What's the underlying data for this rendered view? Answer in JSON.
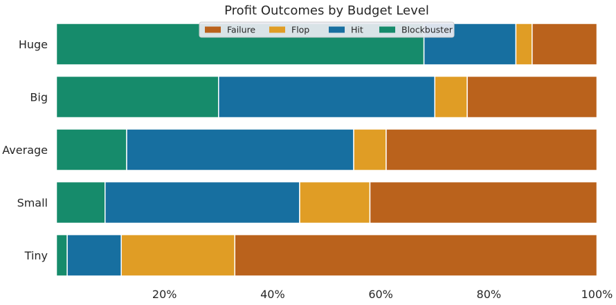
{
  "chart_data": {
    "type": "bar",
    "orientation": "horizontal",
    "stacked": true,
    "title": "Profit Outcomes by Budget Level",
    "xlabel": "",
    "ylabel": "",
    "categories": [
      "Huge",
      "Big",
      "Average",
      "Small",
      "Tiny"
    ],
    "series": [
      {
        "name": "Blockbuster",
        "color": "#168b6b",
        "values": [
          68,
          30,
          13,
          9,
          2
        ]
      },
      {
        "name": "Hit",
        "color": "#176fa0",
        "values": [
          17,
          40,
          42,
          36,
          10
        ]
      },
      {
        "name": "Flop",
        "color": "#e09d25",
        "values": [
          3,
          6,
          6,
          13,
          21
        ]
      },
      {
        "name": "Failure",
        "color": "#ba621c",
        "values": [
          12,
          24,
          39,
          42,
          67
        ]
      }
    ],
    "legend_order": [
      "Failure",
      "Flop",
      "Hit",
      "Blockbuster"
    ],
    "legend_placement": "top-center",
    "xlim": [
      0,
      100
    ],
    "x_ticks": [
      20,
      40,
      60,
      80,
      100
    ],
    "x_tick_labels": [
      "20%",
      "40%",
      "60%",
      "80%",
      "100%"
    ],
    "grid": false
  }
}
